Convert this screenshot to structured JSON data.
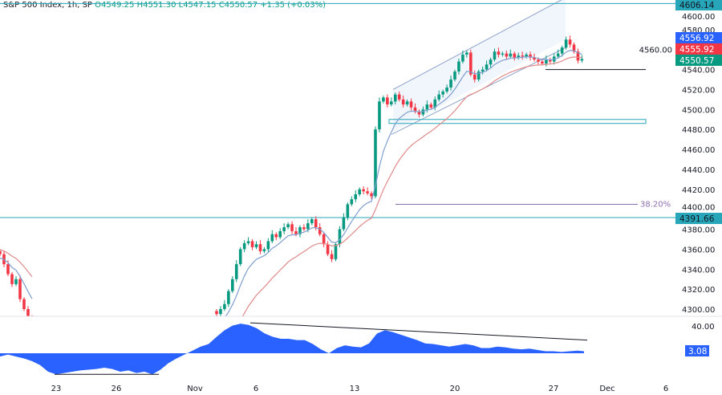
{
  "header": {
    "symbol": "S&P 500 Index, 1h, SP",
    "open": "O4549.25",
    "high": "H4551.30",
    "low": "L4547.15",
    "close": "C4550.57",
    "change": "+1.35 (+0.03%)"
  },
  "colors": {
    "up": "#089981",
    "down": "#f23645",
    "fast_ma": "#7f9fcf",
    "slow_ma": "#e08a8a",
    "level": "#26a6b8",
    "osc": "#2962ff",
    "fib": "#8e6fb0"
  },
  "chart_data": {
    "type": "candlestick",
    "ylim": [
      4290,
      4610
    ],
    "y_ticks": [
      "4600.00",
      "4580.00",
      "4560.00",
      "4540.00",
      "4520.00",
      "4500.00",
      "4480.00",
      "4460.00",
      "4440.00",
      "4420.00",
      "4400.00",
      "4380.00",
      "4360.00",
      "4340.00",
      "4320.00",
      "4300.00"
    ],
    "x_ticks": [
      "23",
      "26",
      "Nov",
      "6",
      "13",
      "20",
      "27",
      "Dec",
      "6"
    ],
    "segment1_closes": [
      4355,
      4345,
      4335,
      4325,
      4330,
      4310,
      4300,
      4290,
      4285
    ],
    "segment2_closes": [
      4295,
      4300,
      4305,
      4318,
      4330,
      4345,
      4360,
      4366,
      4368,
      4362,
      4365,
      4358,
      4360,
      4368,
      4375,
      4372,
      4378,
      4382,
      4385,
      4378,
      4375,
      4382,
      4380,
      4386,
      4390,
      4382,
      4375,
      4365,
      4355,
      4350,
      4365,
      4380,
      4392,
      4405,
      4410,
      4415,
      4420,
      4418,
      4416,
      4413,
      4480,
      4508,
      4512,
      4505,
      4508,
      4515,
      4510,
      4505,
      4508,
      4502,
      4498,
      4495,
      4500,
      4505,
      4502,
      4510,
      4515,
      4518,
      4522,
      4530,
      4538,
      4548,
      4555,
      4557,
      4535,
      4530,
      4538,
      4540,
      4545,
      4550,
      4558,
      4555,
      4556,
      4553,
      4556,
      4552,
      4554,
      4553,
      4555,
      4552,
      4550,
      4548,
      4546,
      4550,
      4548,
      4553,
      4556,
      4562,
      4570,
      4565,
      4558,
      4549,
      4550.57
    ],
    "levels": [
      {
        "price": 4606.14,
        "label": "4606.14"
      },
      {
        "price": 4391.66,
        "label": "4391.66"
      }
    ],
    "support_line": 4540,
    "zone": [
      4486,
      4490
    ],
    "fib": {
      "price": 4405,
      "label": "38.20%"
    },
    "price_tags": [
      {
        "label": "4556.92",
        "color": "#2962ff",
        "price": 4556.92
      },
      {
        "label": "4555.92",
        "color": "#f23645",
        "price": 4555.92
      },
      {
        "label": "4550.57",
        "color": "#089981",
        "price": 4550.57
      }
    ],
    "oscillator": {
      "tick": "40.00",
      "value_label": "3.08",
      "values": [
        -5,
        -2,
        -5,
        -8,
        -12,
        -18,
        -28,
        -32,
        -30,
        -28,
        -26,
        -25,
        -24,
        -22,
        -24,
        -28,
        -26,
        -30,
        -28,
        -32,
        -25,
        -15,
        -8,
        -2,
        4,
        10,
        14,
        25,
        35,
        42,
        45,
        43,
        38,
        30,
        25,
        22,
        22,
        20,
        20,
        14,
        6,
        0,
        8,
        12,
        10,
        9,
        15,
        30,
        35,
        32,
        28,
        24,
        20,
        15,
        14,
        12,
        10,
        12,
        14,
        12,
        8,
        8,
        10,
        9,
        7,
        6,
        7,
        5,
        3,
        3,
        2,
        3,
        4,
        3.08
      ]
    }
  }
}
